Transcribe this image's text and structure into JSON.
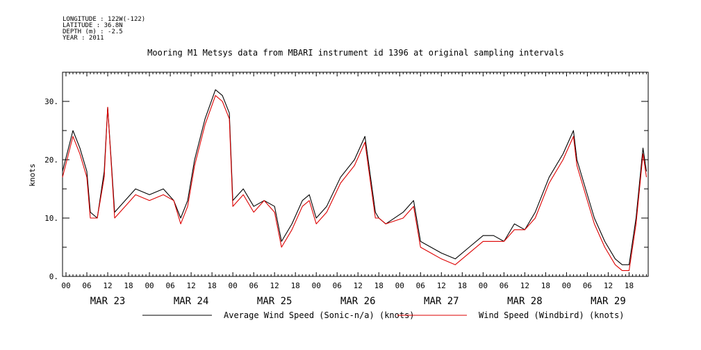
{
  "metadata": {
    "longitude": "LONGITUDE : 122W(-122)",
    "latitude": "LATITUDE : 36.8N",
    "depth": "DEPTH (m) : -2.5",
    "year": "YEAR : 2011"
  },
  "chart_data": {
    "type": "line",
    "title": "Mooring M1 Metsys data from MBARI instrument id 1396 at original sampling intervals",
    "ylabel": "knots",
    "xlabel": "",
    "x_range": [
      "2011-03-22T23:00",
      "2011-03-29T23:30"
    ],
    "ylim": [
      0,
      35
    ],
    "y_ticks": [
      0,
      10,
      20,
      30
    ],
    "y_tick_labels": [
      "0.",
      "10.",
      "20.",
      "30."
    ],
    "x_hour_tick_labels": [
      "00",
      "06",
      "12",
      "18"
    ],
    "x_day_labels": [
      "MAR 23",
      "MAR 24",
      "MAR 25",
      "MAR 26",
      "MAR 27",
      "MAR 28",
      "MAR 29"
    ],
    "grid": false,
    "legend_position": "bottom",
    "series": [
      {
        "name": "Average Wind Speed (Sonic-n/a) (knots)",
        "color": "#000000",
        "x": [
          "2011-03-22T23:00",
          "2011-03-23T02:00",
          "2011-03-23T04:00",
          "2011-03-23T06:00",
          "2011-03-23T07:00",
          "2011-03-23T09:00",
          "2011-03-23T11:00",
          "2011-03-23T12:00",
          "2011-03-23T14:00",
          "2011-03-23T17:00",
          "2011-03-23T20:00",
          "2011-03-24T00:00",
          "2011-03-24T04:00",
          "2011-03-24T07:00",
          "2011-03-24T09:00",
          "2011-03-24T11:00",
          "2011-03-24T13:00",
          "2011-03-24T16:00",
          "2011-03-24T19:00",
          "2011-03-24T21:00",
          "2011-03-24T23:00",
          "2011-03-25T00:00",
          "2011-03-25T03:00",
          "2011-03-25T06:00",
          "2011-03-25T09:00",
          "2011-03-25T12:00",
          "2011-03-25T14:00",
          "2011-03-25T17:00",
          "2011-03-25T20:00",
          "2011-03-25T22:00",
          "2011-03-26T00:00",
          "2011-03-26T03:00",
          "2011-03-26T07:00",
          "2011-03-26T11:00",
          "2011-03-26T14:00",
          "2011-03-26T17:00",
          "2011-03-26T18:00",
          "2011-03-26T20:00",
          "2011-03-27T01:00",
          "2011-03-27T04:00",
          "2011-03-27T06:00",
          "2011-03-27T09:00",
          "2011-03-27T12:00",
          "2011-03-27T16:00",
          "2011-03-27T20:00",
          "2011-03-28T00:00",
          "2011-03-28T03:00",
          "2011-03-28T06:00",
          "2011-03-28T09:00",
          "2011-03-28T12:00",
          "2011-03-28T15:00",
          "2011-03-28T19:00",
          "2011-03-28T23:00",
          "2011-03-29T02:00",
          "2011-03-29T03:00",
          "2011-03-29T05:00",
          "2011-03-29T08:00",
          "2011-03-29T11:00",
          "2011-03-29T14:00",
          "2011-03-29T16:00",
          "2011-03-29T18:00",
          "2011-03-29T20:00",
          "2011-03-29T22:00",
          "2011-03-29T23:00"
        ],
        "y": [
          18,
          25,
          22,
          18,
          11,
          10,
          18,
          29,
          11,
          13,
          15,
          14,
          15,
          13,
          10,
          13,
          20,
          27,
          32,
          31,
          28,
          13,
          15,
          12,
          13,
          12,
          6,
          9,
          13,
          14,
          10,
          12,
          17,
          20,
          24,
          11,
          10,
          9,
          11,
          13,
          6,
          5,
          4,
          3,
          5,
          7,
          7,
          6,
          9,
          8,
          11,
          17,
          21,
          25,
          20,
          16,
          10,
          6,
          3,
          2,
          2,
          10,
          22,
          18
        ]
      },
      {
        "name": "Wind Speed (Windbird) (knots)",
        "color": "#dd0000",
        "x": [
          "2011-03-22T23:00",
          "2011-03-23T02:00",
          "2011-03-23T04:00",
          "2011-03-23T06:00",
          "2011-03-23T07:00",
          "2011-03-23T09:00",
          "2011-03-23T11:00",
          "2011-03-23T12:00",
          "2011-03-23T14:00",
          "2011-03-23T17:00",
          "2011-03-23T20:00",
          "2011-03-24T00:00",
          "2011-03-24T04:00",
          "2011-03-24T07:00",
          "2011-03-24T09:00",
          "2011-03-24T11:00",
          "2011-03-24T13:00",
          "2011-03-24T16:00",
          "2011-03-24T19:00",
          "2011-03-24T21:00",
          "2011-03-24T23:00",
          "2011-03-25T00:00",
          "2011-03-25T03:00",
          "2011-03-25T06:00",
          "2011-03-25T09:00",
          "2011-03-25T12:00",
          "2011-03-25T14:00",
          "2011-03-25T17:00",
          "2011-03-25T20:00",
          "2011-03-25T22:00",
          "2011-03-26T00:00",
          "2011-03-26T03:00",
          "2011-03-26T07:00",
          "2011-03-26T11:00",
          "2011-03-26T14:00",
          "2011-03-26T17:00",
          "2011-03-26T18:00",
          "2011-03-26T20:00",
          "2011-03-27T01:00",
          "2011-03-27T04:00",
          "2011-03-27T06:00",
          "2011-03-27T09:00",
          "2011-03-27T12:00",
          "2011-03-27T16:00",
          "2011-03-27T20:00",
          "2011-03-28T00:00",
          "2011-03-28T03:00",
          "2011-03-28T06:00",
          "2011-03-28T09:00",
          "2011-03-28T12:00",
          "2011-03-28T15:00",
          "2011-03-28T19:00",
          "2011-03-28T23:00",
          "2011-03-29T02:00",
          "2011-03-29T03:00",
          "2011-03-29T05:00",
          "2011-03-29T08:00",
          "2011-03-29T11:00",
          "2011-03-29T14:00",
          "2011-03-29T16:00",
          "2011-03-29T18:00",
          "2011-03-29T20:00",
          "2011-03-29T22:00",
          "2011-03-29T23:00"
        ],
        "y": [
          17,
          24,
          21,
          17,
          10,
          10,
          17,
          29,
          10,
          12,
          14,
          13,
          14,
          13,
          9,
          12,
          19,
          26,
          31,
          30,
          27,
          12,
          14,
          11,
          13,
          11,
          5,
          8,
          12,
          13,
          9,
          11,
          16,
          19,
          23,
          10,
          10,
          9,
          10,
          12,
          5,
          4,
          3,
          2,
          4,
          6,
          6,
          6,
          8,
          8,
          10,
          16,
          20,
          24,
          19,
          15,
          9,
          5,
          2,
          1,
          1,
          9,
          21,
          17
        ]
      }
    ]
  }
}
